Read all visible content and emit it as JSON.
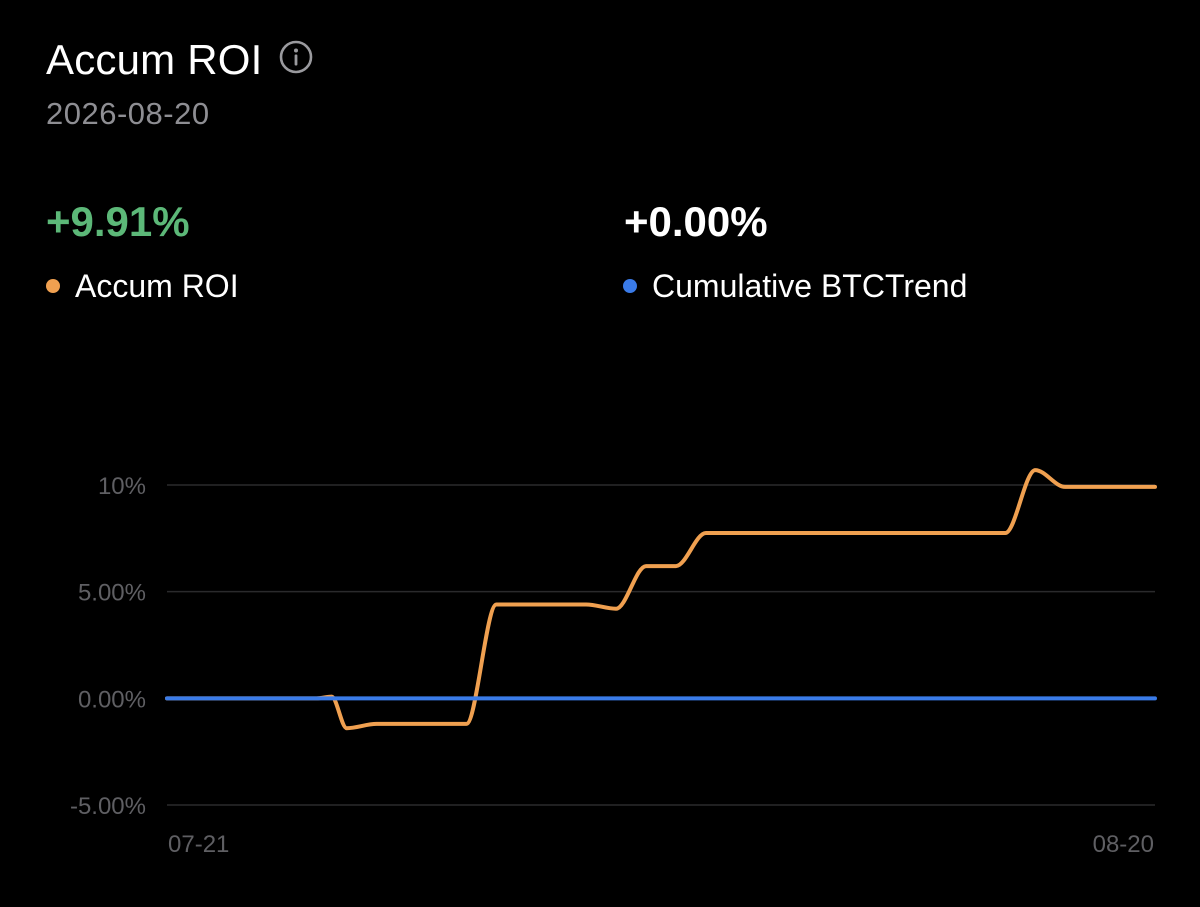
{
  "header": {
    "title": "Accum ROI",
    "date": "2026-08-20"
  },
  "metrics": [
    {
      "value": "+9.91%",
      "label": "Accum ROI",
      "color": "#5cb878",
      "dot_color": "#f0a050"
    },
    {
      "value": "+0.00%",
      "label": "Cumulative BTCTrend",
      "color": "#ffffff",
      "dot_color": "#3a7be8"
    }
  ],
  "icons": {
    "info": "info-circle-icon"
  },
  "colors": {
    "background": "#000000",
    "roi_line": "#f0a050",
    "btc_line": "#3a7be8",
    "grid": "#2a2a2c",
    "tick_label": "#5f5f63"
  },
  "chart_data": {
    "type": "line",
    "x_labels": [
      "07-21",
      "08-20"
    ],
    "y_tick_labels": [
      "10%",
      "5.00%",
      "0.00%",
      "-5.00%"
    ],
    "y_ticks": [
      10,
      5,
      0,
      -5
    ],
    "ylim": [
      -5,
      10
    ],
    "grid": true,
    "series": [
      {
        "name": "Accum ROI",
        "color": "#f0a050",
        "points": [
          [
            0,
            0
          ],
          [
            5,
            0
          ],
          [
            5.5,
            0.08
          ],
          [
            6,
            -1.4
          ],
          [
            7,
            -1.2
          ],
          [
            10,
            -1.2
          ],
          [
            11,
            4.4
          ],
          [
            14,
            4.4
          ],
          [
            15,
            4.2
          ],
          [
            16,
            6.2
          ],
          [
            17,
            6.2
          ],
          [
            18,
            7.75
          ],
          [
            25,
            7.75
          ],
          [
            28,
            7.75
          ],
          [
            29,
            10.7
          ],
          [
            30,
            9.91
          ],
          [
            33,
            9.91
          ]
        ]
      },
      {
        "name": "Cumulative BTCTrend",
        "color": "#3a7be8",
        "points": [
          [
            0,
            0
          ],
          [
            33,
            0
          ]
        ]
      }
    ]
  }
}
